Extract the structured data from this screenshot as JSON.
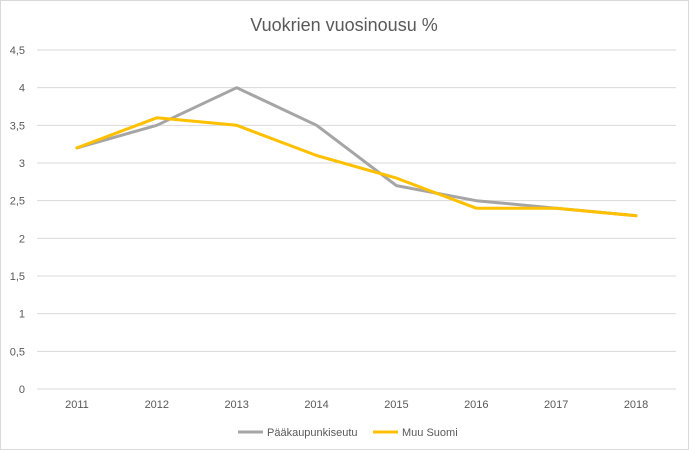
{
  "chart_data": {
    "type": "line",
    "title": "Vuokrien vuosinousu %",
    "xlabel": "",
    "ylabel": "",
    "categories": [
      "2011",
      "2012",
      "2013",
      "2014",
      "2015",
      "2016",
      "2017",
      "2018"
    ],
    "y_ticks": [
      "0",
      "0,5",
      "1",
      "1,5",
      "2",
      "2,5",
      "3",
      "3,5",
      "4",
      "4,5"
    ],
    "ylim": [
      0,
      4.5
    ],
    "grid": true,
    "legend_position": "bottom",
    "series": [
      {
        "name": "Pääkaupunkiseutu",
        "color": "#a5a5a5",
        "values": [
          3.2,
          3.5,
          4.0,
          3.5,
          2.7,
          2.5,
          2.4,
          2.3
        ]
      },
      {
        "name": "Muu Suomi",
        "color": "#ffc000",
        "values": [
          3.2,
          3.6,
          3.5,
          3.1,
          2.8,
          2.4,
          2.4,
          2.3
        ]
      }
    ]
  }
}
